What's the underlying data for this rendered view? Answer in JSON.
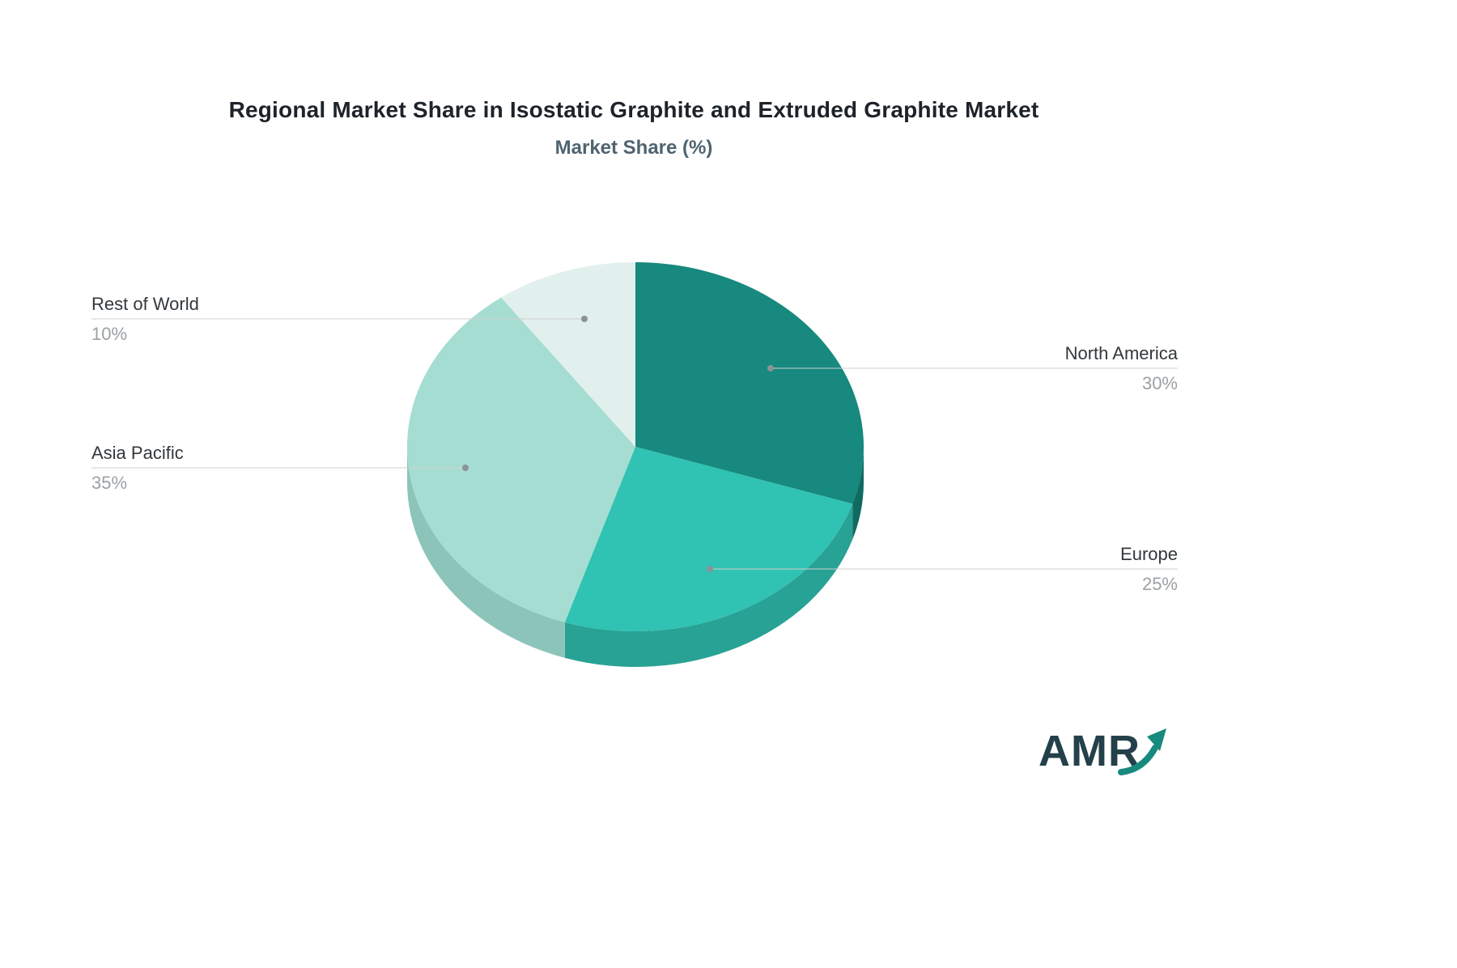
{
  "header": {
    "title": "Regional Market Share in Isostatic Graphite and Extruded Graphite Market",
    "subtitle": "Market Share (%)"
  },
  "logo": {
    "text": "AMR"
  },
  "chart_data": {
    "type": "pie",
    "title": "Regional Market Share in Isostatic Graphite and Extruded Graphite Market",
    "subtitle": "Market Share (%)",
    "unit": "%",
    "style": "3d",
    "start_angle_deg": -90,
    "direction": "clockwise",
    "legend_position": "none",
    "categories": [
      "North America",
      "Europe",
      "Asia Pacific",
      "Rest of World"
    ],
    "values": [
      30,
      25,
      35,
      10
    ],
    "slices": [
      {
        "label": "North America",
        "value": 30,
        "pct_label": "30%",
        "color": "#17897E",
        "side_color": "#0F6B62"
      },
      {
        "label": "Europe",
        "value": 25,
        "pct_label": "25%",
        "color": "#30C2B2",
        "side_color": "#27A294"
      },
      {
        "label": "Asia Pacific",
        "value": 35,
        "pct_label": "35%",
        "color": "#A6DDD3",
        "side_color": "#8CC4BA"
      },
      {
        "label": "Rest of World",
        "value": 10,
        "pct_label": "10%",
        "color": "#E2F0ED",
        "side_color": "#C5DCD7"
      }
    ],
    "leader_line_color": "#CFCFCF",
    "leader_dot_color": "#8C9396"
  }
}
